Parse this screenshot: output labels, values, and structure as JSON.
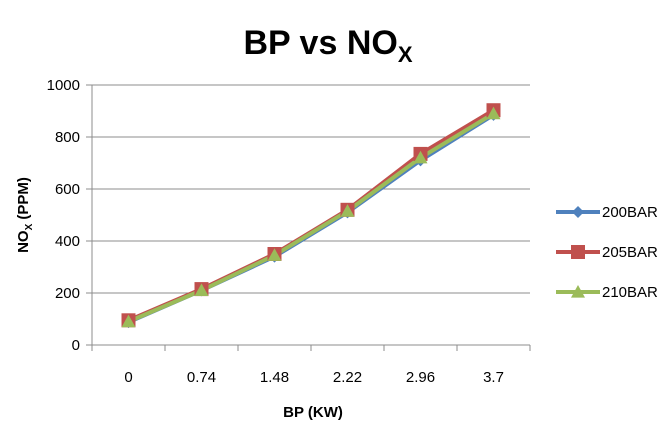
{
  "chart_data": {
    "type": "line",
    "title": {
      "main": "BP vs NO",
      "subscript": "X"
    },
    "xlabel": "BP (KW)",
    "ylabel": {
      "main": "NO",
      "subscript": "X",
      "rest": " (PPM)"
    },
    "categories": [
      "0",
      "0.74",
      "1.48",
      "2.22",
      "2.96",
      "3.7"
    ],
    "ylim": [
      0,
      1000
    ],
    "yticks": [
      "0",
      "200",
      "400",
      "600",
      "800",
      "1000"
    ],
    "grid": true,
    "legend_position": "right",
    "series": [
      {
        "name": "200BAR",
        "color": "#4F81BD",
        "marker": "diamond",
        "values": [
          88,
          210,
          340,
          510,
          710,
          885
        ]
      },
      {
        "name": "205BAR",
        "color": "#C0504D",
        "marker": "square",
        "values": [
          95,
          215,
          350,
          520,
          735,
          903
        ]
      },
      {
        "name": "210BAR",
        "color": "#9BBB59",
        "marker": "triangle",
        "values": [
          90,
          210,
          345,
          515,
          720,
          890
        ]
      }
    ]
  }
}
